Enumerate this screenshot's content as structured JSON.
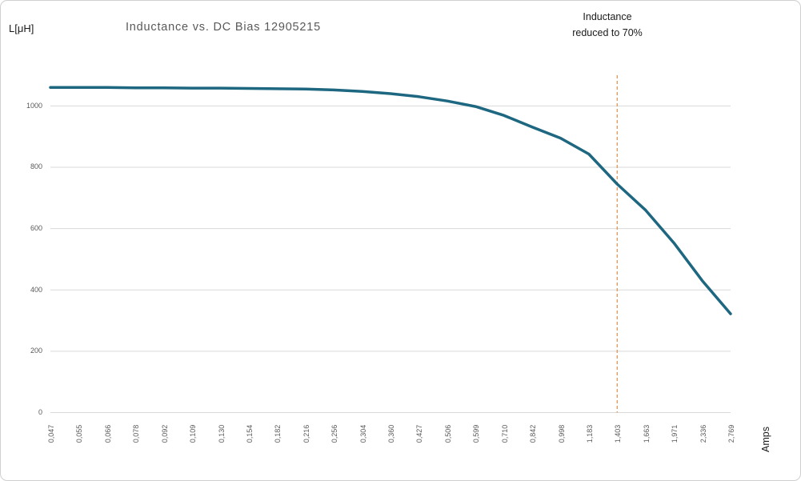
{
  "header": {
    "y_unit_label": "L[μH]",
    "title": "Inductance vs. DC Bias 12905215",
    "annotation_line1": "Inductance",
    "annotation_line2": "reduced to 70%",
    "x_unit_label": "Amps"
  },
  "chart_data": {
    "type": "line",
    "title": "Inductance vs. DC Bias 12905215",
    "xlabel": "Amps",
    "ylabel": "L[μH]",
    "categories": [
      "0,047",
      "0,055",
      "0,066",
      "0,078",
      "0,092",
      "0,109",
      "0,130",
      "0,154",
      "0,182",
      "0,216",
      "0,256",
      "0,304",
      "0,360",
      "0,427",
      "0,506",
      "0,599",
      "0,710",
      "0,842",
      "0,998",
      "1,183",
      "1,403",
      "1,663",
      "1,971",
      "2,336",
      "2,769"
    ],
    "series": [
      {
        "name": "Inductance",
        "values": [
          1060,
          1060,
          1060,
          1059,
          1059,
          1058,
          1058,
          1057,
          1056,
          1055,
          1052,
          1047,
          1040,
          1030,
          1016,
          998,
          969,
          931,
          895,
          843,
          745,
          660,
          553,
          430,
          322
        ],
        "color": "#1e6781"
      }
    ],
    "ylim": [
      0,
      1100
    ],
    "y_ticks": [
      0,
      200,
      400,
      600,
      800,
      1000
    ],
    "grid": true,
    "legend": "none",
    "reference_line": {
      "category": "1,403",
      "label": "Inductance reduced to 70%",
      "style": "dashed",
      "color": "#dd9d63"
    }
  },
  "colors": {
    "series_line": "#1e6781",
    "reference_line": "#dd9d63",
    "gridline": "#d9d9d9",
    "axis_text": "#595959",
    "title_text": "#595959",
    "dark_text": "#1a1a1a",
    "border": "#cfcfcf",
    "background": "#ffffff"
  }
}
